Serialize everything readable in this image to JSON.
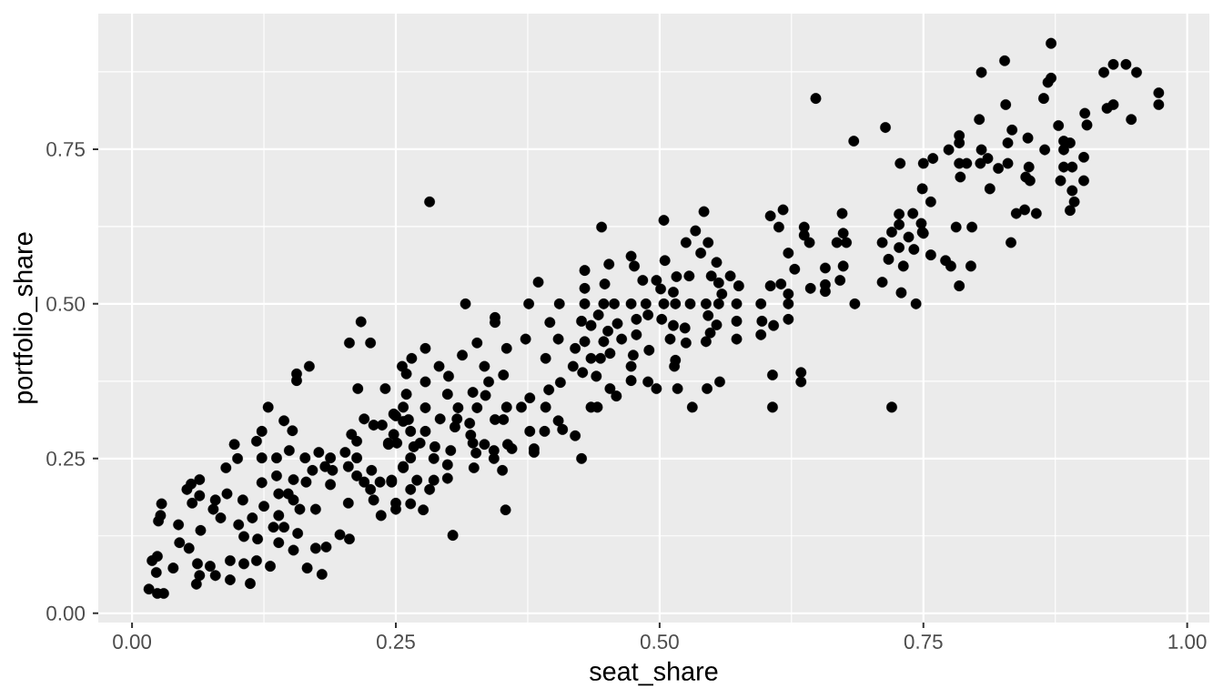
{
  "chart_data": {
    "type": "scatter",
    "xlabel": "seat_share",
    "ylabel": "portfolio_share",
    "color": "#000000",
    "marker": "circle",
    "grid": true,
    "xlim": [
      -0.032,
      1.021
    ],
    "ylim": [
      -0.015,
      0.969
    ],
    "xticks": [
      {
        "value": 0,
        "label": "0.00"
      },
      {
        "value": 0.25,
        "label": "0.25"
      },
      {
        "value": 0.5,
        "label": "0.50"
      },
      {
        "value": 0.75,
        "label": "0.75"
      },
      {
        "value": 1,
        "label": "1.00"
      }
    ],
    "yticks": [
      {
        "value": 0,
        "label": "0.00"
      },
      {
        "value": 0.25,
        "label": "0.25"
      },
      {
        "value": 0.5,
        "label": "0.50"
      },
      {
        "value": 0.75,
        "label": "0.75"
      }
    ],
    "x": [
      0.016,
      0.024,
      0.03,
      0.023,
      0.019,
      0.024,
      0.039,
      0.045,
      0.044,
      0.025,
      0.027,
      0.028,
      0.057,
      0.064,
      0.052,
      0.056,
      0.064,
      0.054,
      0.062,
      0.074,
      0.079,
      0.064,
      0.061,
      0.065,
      0.077,
      0.079,
      0.09,
      0.105,
      0.084,
      0.101,
      0.106,
      0.093,
      0.093,
      0.112,
      0.106,
      0.118,
      0.131,
      0.119,
      0.114,
      0.125,
      0.139,
      0.144,
      0.157,
      0.139,
      0.134,
      0.166,
      0.18,
      0.174,
      0.184,
      0.153,
      0.197,
      0.206,
      0.139,
      0.153,
      0.165,
      0.174,
      0.159,
      0.171,
      0.188,
      0.202,
      0.205,
      0.19,
      0.213,
      0.213,
      0.205,
      0.188,
      0.183,
      0.177,
      0.164,
      0.153,
      0.148,
      0.22,
      0.227,
      0.226,
      0.229,
      0.236,
      0.25,
      0.25,
      0.264,
      0.235,
      0.246,
      0.257,
      0.264,
      0.248,
      0.257,
      0.237,
      0.22,
      0.208,
      0.213,
      0.229,
      0.243,
      0.26,
      0.25,
      0.24,
      0.214,
      0.257,
      0.26,
      0.265,
      0.144,
      0.152,
      0.123,
      0.118,
      0.097,
      0.1,
      0.089,
      0.123,
      0.137,
      0.149,
      0.123,
      0.137,
      0.129,
      0.156,
      0.156,
      0.168,
      0.206,
      0.226,
      0.217,
      0.282,
      0.445,
      0.504,
      0.385,
      0.316,
      0.376,
      0.405,
      0.429,
      0.429,
      0.429,
      0.452,
      0.473,
      0.476,
      0.448,
      0.505,
      0.344,
      0.344,
      0.396,
      0.327,
      0.278,
      0.373,
      0.404,
      0.355,
      0.313,
      0.334,
      0.256,
      0.291,
      0.418,
      0.427,
      0.44,
      0.392,
      0.352,
      0.338,
      0.278,
      0.3,
      0.299,
      0.323,
      0.335,
      0.355,
      0.369,
      0.392,
      0.406,
      0.395,
      0.377,
      0.435,
      0.441,
      0.453,
      0.459,
      0.473,
      0.489,
      0.497,
      0.473,
      0.475,
      0.49,
      0.515,
      0.514,
      0.453,
      0.444,
      0.435,
      0.429,
      0.42,
      0.447,
      0.464,
      0.478,
      0.51,
      0.487,
      0.504,
      0.515,
      0.473,
      0.457,
      0.447,
      0.442,
      0.426,
      0.435,
      0.451,
      0.46,
      0.478,
      0.489,
      0.502,
      0.513,
      0.524,
      0.484,
      0.497,
      0.501,
      0.516,
      0.513,
      0.248,
      0.278,
      0.309,
      0.327,
      0.292,
      0.308,
      0.306,
      0.32,
      0.344,
      0.352,
      0.262,
      0.278,
      0.264,
      0.243,
      0.251,
      0.273,
      0.267,
      0.287,
      0.302,
      0.321,
      0.323,
      0.334,
      0.326,
      0.343,
      0.343,
      0.356,
      0.36,
      0.381,
      0.381,
      0.377,
      0.391,
      0.404,
      0.408,
      0.42,
      0.426,
      0.286,
      0.299,
      0.324,
      0.351,
      0.257,
      0.246,
      0.27,
      0.286,
      0.299,
      0.264,
      0.282,
      0.276,
      0.354,
      0.304,
      0.648,
      0.714,
      0.684,
      0.728,
      0.542,
      0.617,
      0.605,
      0.613,
      0.637,
      0.637,
      0.642,
      0.622,
      0.628,
      0.673,
      0.674,
      0.668,
      0.677,
      0.657,
      0.674,
      0.671,
      0.657,
      0.657,
      0.643,
      0.615,
      0.605,
      0.622,
      0.622,
      0.596,
      0.573,
      0.685,
      0.743,
      0.597,
      0.608,
      0.622,
      0.596,
      0.573,
      0.573,
      0.607,
      0.634,
      0.634,
      0.607,
      0.72,
      0.557,
      0.545,
      0.531,
      0.517,
      0.711,
      0.72,
      0.727,
      0.727,
      0.74,
      0.736,
      0.727,
      0.741,
      0.748,
      0.749,
      0.757,
      0.717,
      0.731,
      0.711,
      0.729,
      0.525,
      0.534,
      0.546,
      0.539,
      0.554,
      0.528,
      0.549,
      0.567,
      0.556,
      0.575,
      0.559,
      0.529,
      0.544,
      0.556,
      0.546,
      0.554,
      0.548,
      0.544,
      0.525,
      0.871,
      0.827,
      0.805,
      0.921,
      0.93,
      0.942,
      0.952,
      0.871,
      0.868,
      0.864,
      0.973,
      0.973,
      0.924,
      0.93,
      0.947,
      0.903,
      0.905,
      0.828,
      0.803,
      0.878,
      0.834,
      0.784,
      0.784,
      0.774,
      0.805,
      0.811,
      0.804,
      0.784,
      0.791,
      0.785,
      0.83,
      0.849,
      0.83,
      0.821,
      0.85,
      0.847,
      0.851,
      0.865,
      0.883,
      0.889,
      0.883,
      0.902,
      0.883,
      0.891,
      0.88,
      0.902,
      0.891,
      0.893,
      0.889,
      0.813,
      0.838,
      0.846,
      0.857,
      0.833,
      0.759,
      0.75,
      0.749,
      0.757,
      0.781,
      0.796,
      0.75,
      0.771,
      0.776,
      0.795,
      0.784
    ],
    "values": [
      0.039,
      0.032,
      0.032,
      0.066,
      0.085,
      0.092,
      0.073,
      0.114,
      0.143,
      0.149,
      0.158,
      0.177,
      0.178,
      0.19,
      0.2,
      0.209,
      0.216,
      0.105,
      0.08,
      0.076,
      0.061,
      0.061,
      0.047,
      0.134,
      0.168,
      0.183,
      0.193,
      0.183,
      0.154,
      0.143,
      0.124,
      0.085,
      0.054,
      0.048,
      0.08,
      0.085,
      0.076,
      0.12,
      0.154,
      0.173,
      0.158,
      0.139,
      0.129,
      0.114,
      0.139,
      0.073,
      0.063,
      0.105,
      0.107,
      0.102,
      0.127,
      0.12,
      0.193,
      0.183,
      0.212,
      0.168,
      0.168,
      0.231,
      0.251,
      0.26,
      0.237,
      0.231,
      0.251,
      0.222,
      0.178,
      0.208,
      0.237,
      0.26,
      0.251,
      0.216,
      0.193,
      0.212,
      0.231,
      0.2,
      0.183,
      0.158,
      0.178,
      0.168,
      0.177,
      0.212,
      0.212,
      0.237,
      0.251,
      0.289,
      0.31,
      0.304,
      0.314,
      0.289,
      0.278,
      0.304,
      0.275,
      0.354,
      0.319,
      0.363,
      0.363,
      0.333,
      0.387,
      0.412,
      0.311,
      0.295,
      0.294,
      0.278,
      0.273,
      0.25,
      0.235,
      0.251,
      0.251,
      0.263,
      0.211,
      0.222,
      0.333,
      0.387,
      0.376,
      0.399,
      0.437,
      0.437,
      0.471,
      0.665,
      0.624,
      0.635,
      0.535,
      0.5,
      0.5,
      0.5,
      0.554,
      0.525,
      0.5,
      0.564,
      0.577,
      0.561,
      0.532,
      0.57,
      0.478,
      0.47,
      0.47,
      0.437,
      0.428,
      0.443,
      0.443,
      0.428,
      0.417,
      0.399,
      0.399,
      0.399,
      0.399,
      0.389,
      0.383,
      0.412,
      0.385,
      0.374,
      0.374,
      0.383,
      0.354,
      0.357,
      0.352,
      0.333,
      0.333,
      0.333,
      0.373,
      0.361,
      0.348,
      0.333,
      0.333,
      0.363,
      0.351,
      0.376,
      0.374,
      0.363,
      0.399,
      0.417,
      0.425,
      0.409,
      0.399,
      0.42,
      0.412,
      0.412,
      0.439,
      0.428,
      0.439,
      0.443,
      0.45,
      0.443,
      0.5,
      0.5,
      0.5,
      0.5,
      0.5,
      0.5,
      0.482,
      0.472,
      0.465,
      0.456,
      0.468,
      0.475,
      0.482,
      0.475,
      0.465,
      0.461,
      0.538,
      0.538,
      0.524,
      0.544,
      0.519,
      0.322,
      0.332,
      0.332,
      0.332,
      0.314,
      0.314,
      0.301,
      0.307,
      0.313,
      0.313,
      0.313,
      0.294,
      0.294,
      0.273,
      0.275,
      0.275,
      0.269,
      0.269,
      0.263,
      0.288,
      0.275,
      0.273,
      0.259,
      0.263,
      0.25,
      0.273,
      0.266,
      0.266,
      0.26,
      0.294,
      0.294,
      0.311,
      0.297,
      0.287,
      0.25,
      0.25,
      0.24,
      0.235,
      0.231,
      0.235,
      0.215,
      0.215,
      0.215,
      0.218,
      0.2,
      0.2,
      0.167,
      0.167,
      0.126,
      0.832,
      0.785,
      0.763,
      0.727,
      0.649,
      0.652,
      0.642,
      0.624,
      0.624,
      0.611,
      0.599,
      0.582,
      0.556,
      0.646,
      0.614,
      0.599,
      0.599,
      0.558,
      0.561,
      0.538,
      0.531,
      0.52,
      0.525,
      0.532,
      0.529,
      0.516,
      0.5,
      0.5,
      0.5,
      0.5,
      0.5,
      0.472,
      0.465,
      0.475,
      0.45,
      0.472,
      0.443,
      0.385,
      0.389,
      0.374,
      0.333,
      0.333,
      0.374,
      0.363,
      0.333,
      0.363,
      0.599,
      0.616,
      0.628,
      0.645,
      0.646,
      0.608,
      0.591,
      0.588,
      0.63,
      0.616,
      0.579,
      0.572,
      0.561,
      0.535,
      0.518,
      0.599,
      0.618,
      0.599,
      0.582,
      0.567,
      0.545,
      0.545,
      0.545,
      0.534,
      0.529,
      0.516,
      0.5,
      0.5,
      0.5,
      0.481,
      0.466,
      0.453,
      0.439,
      0.437,
      0.921,
      0.893,
      0.874,
      0.874,
      0.887,
      0.887,
      0.874,
      0.865,
      0.858,
      0.832,
      0.841,
      0.822,
      0.816,
      0.822,
      0.798,
      0.808,
      0.789,
      0.822,
      0.798,
      0.788,
      0.781,
      0.772,
      0.76,
      0.749,
      0.749,
      0.735,
      0.727,
      0.727,
      0.727,
      0.705,
      0.76,
      0.768,
      0.727,
      0.719,
      0.721,
      0.705,
      0.699,
      0.749,
      0.763,
      0.76,
      0.749,
      0.737,
      0.721,
      0.721,
      0.699,
      0.699,
      0.683,
      0.665,
      0.651,
      0.686,
      0.646,
      0.652,
      0.646,
      0.599,
      0.735,
      0.727,
      0.686,
      0.665,
      0.624,
      0.624,
      0.614,
      0.57,
      0.561,
      0.561,
      0.529
    ]
  }
}
